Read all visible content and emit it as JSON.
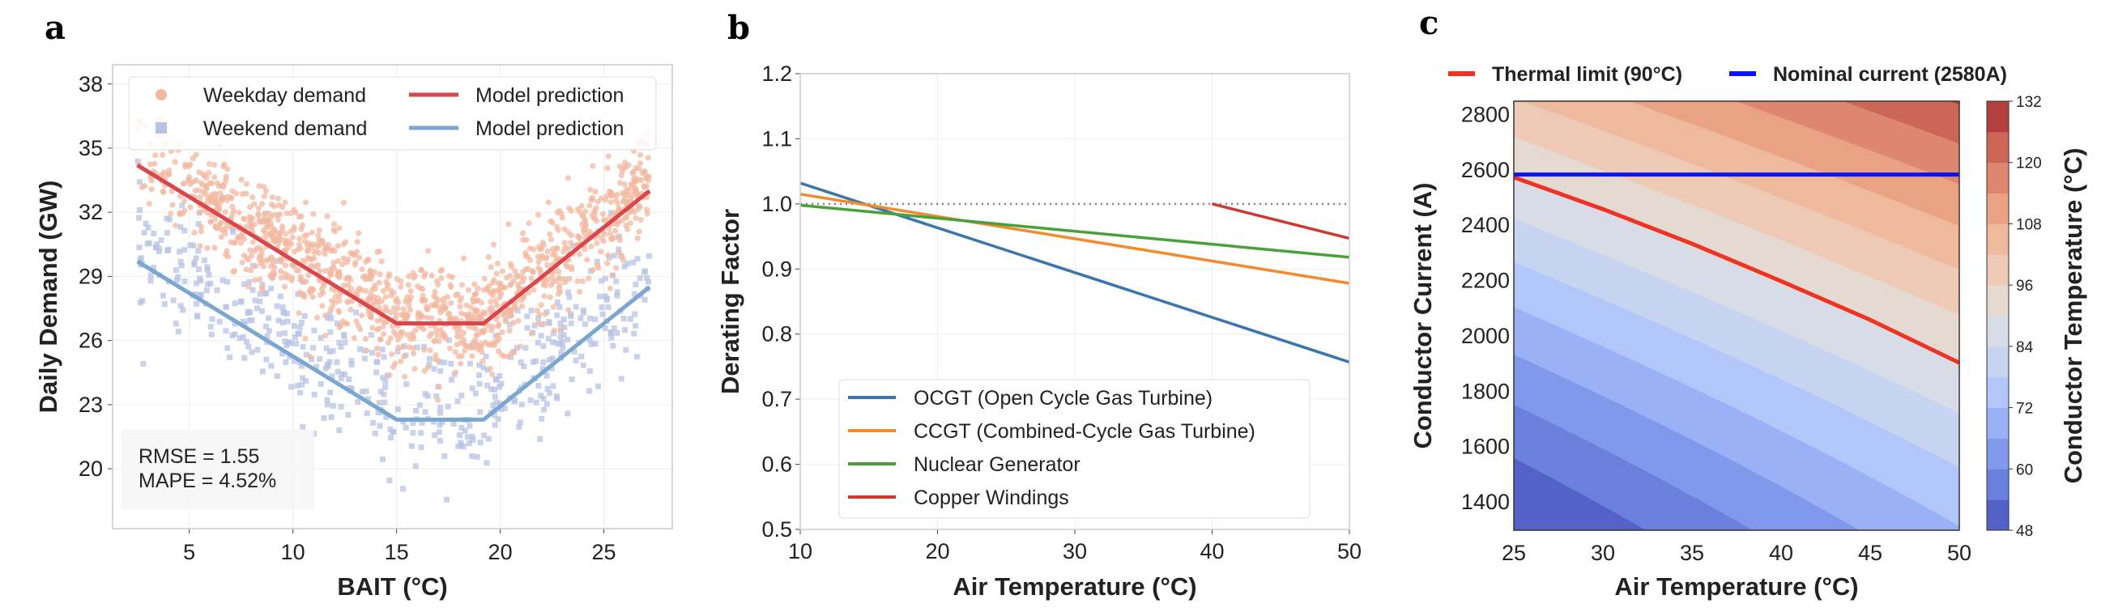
{
  "chart_data": [
    {
      "panel": "a",
      "type": "scatter",
      "xlabel": "BAIT (°C)",
      "ylabel": "Daily Demand (GW)",
      "xlim": [
        1.3,
        28.3
      ],
      "ylim": [
        17.2,
        38.9
      ],
      "xticks": [
        5,
        10,
        15,
        20,
        25
      ],
      "yticks": [
        20,
        23,
        26,
        29,
        32,
        35,
        38
      ],
      "grid": true,
      "legend_placement": "top",
      "legend": [
        "Weekday demand",
        "Weekend demand",
        "Model prediction",
        "Model prediction"
      ],
      "colors": {
        "weekday": "#f2b8a0",
        "weekend": "#b7c3e3",
        "weekday_model": "#d9464b",
        "weekend_model": "#7aa6d0"
      },
      "series": [
        {
          "name": "Model prediction",
          "group": "weekday",
          "x": [
            2.5,
            15.0,
            19.2,
            27.2
          ],
          "y": [
            34.2,
            26.8,
            26.8,
            33.0
          ]
        },
        {
          "name": "Model prediction",
          "group": "weekend",
          "x": [
            2.5,
            15.0,
            19.2,
            27.2
          ],
          "y": [
            29.7,
            22.3,
            22.3,
            28.5
          ]
        }
      ],
      "scatter_x_range": [
        2.5,
        27.2
      ],
      "annotation": [
        "RMSE = 1.55",
        "MAPE = 4.52%"
      ]
    },
    {
      "panel": "b",
      "type": "line",
      "xlabel": "Air Temperature (°C)",
      "ylabel": "Derating Factor",
      "xlim": [
        10,
        50
      ],
      "ylim": [
        0.5,
        1.2
      ],
      "xticks": [
        10,
        20,
        30,
        40,
        50
      ],
      "yticks": [
        0.5,
        0.6,
        0.7,
        0.8,
        0.9,
        1.0,
        1.1,
        1.2
      ],
      "ytick_labels": [
        "0.5",
        "0.6",
        "0.7",
        "0.8",
        "0.9",
        "1.0",
        "1.1",
        "1.2"
      ],
      "grid": true,
      "reference_line": 1.0,
      "legend_placement": "lower-center",
      "series": [
        {
          "name": "OCGT (Open Cycle Gas Turbine)",
          "color": "#3a75b0",
          "x": [
            10,
            50
          ],
          "y": [
            1.032,
            0.757
          ]
        },
        {
          "name": "CCGT (Combined-Cycle Gas Turbine)",
          "color": "#f28a30",
          "x": [
            10,
            50
          ],
          "y": [
            1.015,
            0.878
          ]
        },
        {
          "name": "Nuclear Generator",
          "color": "#4aa03a",
          "x": [
            10,
            50
          ],
          "y": [
            0.998,
            0.918
          ]
        },
        {
          "name": "Copper Windings",
          "color": "#cc3a33",
          "x": [
            40,
            50
          ],
          "y": [
            1.0,
            0.947
          ]
        }
      ]
    },
    {
      "panel": "c",
      "type": "heatmap",
      "xlabel": "Air Temperature (°C)",
      "ylabel": "Conductor Current (A)",
      "colorbar_label": "Conductor Temperature (°C)",
      "xlim": [
        25,
        50
      ],
      "ylim": [
        1295,
        2845
      ],
      "xticks": [
        25,
        30,
        35,
        40,
        45,
        50
      ],
      "yticks": [
        1400,
        1600,
        1800,
        2000,
        2200,
        2400,
        2600,
        2800
      ],
      "colorbar_range": [
        48,
        132
      ],
      "colorbar_ticks": [
        48,
        60,
        72,
        84,
        96,
        108,
        120,
        132
      ],
      "levels": [
        48,
        54,
        60,
        66,
        72,
        78,
        84,
        90,
        96,
        102,
        108,
        114,
        120,
        126,
        132
      ],
      "band_colors": [
        "#5462c8",
        "#6a80dc",
        "#8199eb",
        "#9bb1f6",
        "#b2c6f9",
        "#c6d4f2",
        "#d8dce6",
        "#e4dad1",
        "#eecab6",
        "#efb99d",
        "#e9a284",
        "#dd8770",
        "#cc6757",
        "#b43f3f"
      ],
      "legend_placement": "top",
      "legend": [
        {
          "name": "Thermal limit (90°C)",
          "color": "#ee3224"
        },
        {
          "name": "Nominal current (2580A)",
          "color": "#0a14f5"
        }
      ],
      "thermal_limit": {
        "x": [
          25,
          30,
          35,
          40,
          45,
          50
        ],
        "y": [
          2570,
          2455,
          2330,
          2195,
          2055,
          1900
        ]
      },
      "nominal_current": 2580
    }
  ]
}
